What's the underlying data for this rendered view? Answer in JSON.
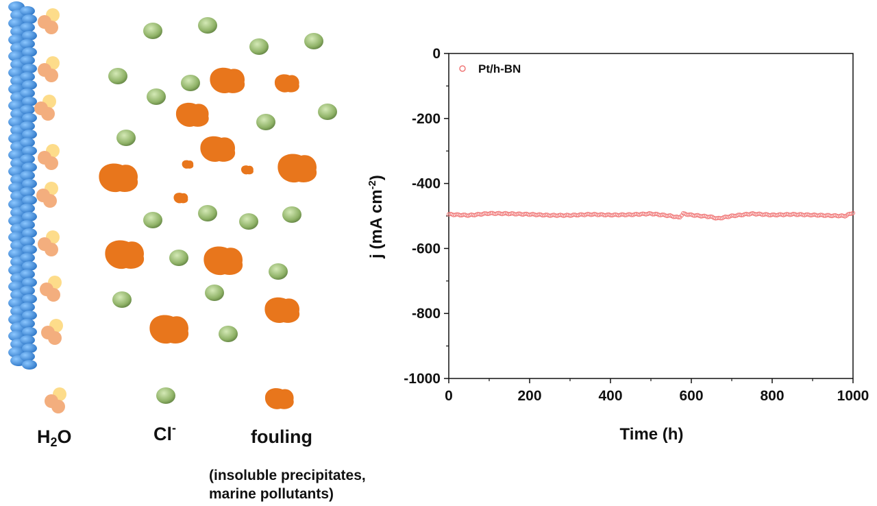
{
  "legend_labels": {
    "water": "H2O",
    "water_main": "H",
    "water_sub": "2",
    "water_end": "O",
    "chloride_main": "Cl",
    "chloride_sup": "-",
    "fouling": "fouling",
    "fouling_note_line1": "(insoluble precipitates,",
    "fouling_note_line2": "marine pollutants)"
  },
  "colors": {
    "electrode": "#3d8fe0",
    "water_light": "#fddc8a",
    "water_dark": "#f3ae7e",
    "chloride": "#92b56a",
    "fouling": "#e8761c",
    "series_marker": "#f07878"
  },
  "chart_data": {
    "type": "scatter",
    "xlabel": "Time (h)",
    "ylabel_main": "j (mA cm",
    "ylabel_sup": "-2",
    "ylabel_end": ")",
    "xlim": [
      0,
      1000
    ],
    "ylim": [
      -1000,
      0
    ],
    "x_ticks": [
      "0",
      "200",
      "400",
      "600",
      "800",
      "1000"
    ],
    "y_ticks": [
      "0",
      "-200",
      "-400",
      "-600",
      "-800",
      "-1000"
    ],
    "legend_position": "top-left",
    "series": [
      {
        "name": "Pt/h-BN",
        "x": [
          0,
          50,
          100,
          150,
          200,
          250,
          300,
          350,
          400,
          450,
          500,
          550,
          570,
          580,
          600,
          650,
          665,
          700,
          750,
          800,
          850,
          900,
          950,
          980,
          1000
        ],
        "y": [
          -495,
          -498,
          -492,
          -493,
          -495,
          -498,
          -498,
          -495,
          -497,
          -496,
          -493,
          -500,
          -505,
          -493,
          -497,
          -503,
          -508,
          -500,
          -493,
          -497,
          -495,
          -497,
          -499,
          -500,
          -490
        ]
      }
    ]
  }
}
